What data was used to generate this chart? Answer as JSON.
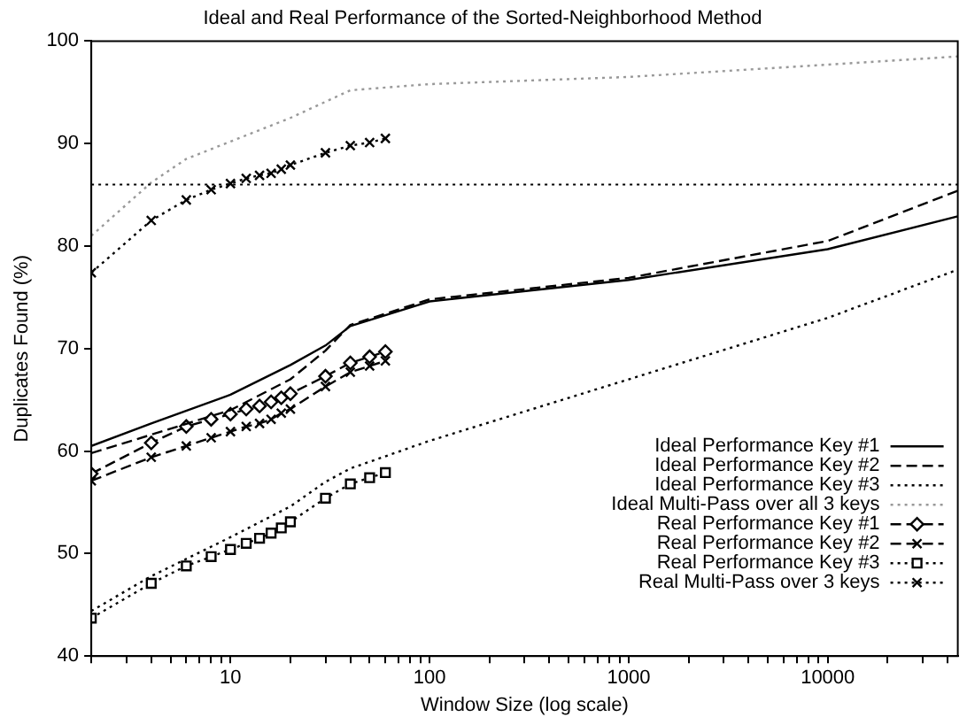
{
  "chart_data": {
    "type": "line",
    "title": "Ideal and Real Performance of the Sorted-Neighborhood Method",
    "xlabel": "Window Size (log scale)",
    "ylabel": "Duplicates Found (%)",
    "log": "x",
    "xlim": [
      2,
      45000
    ],
    "ylim": [
      40,
      100
    ],
    "xticks": [
      {
        "value": 2,
        "label": null
      },
      {
        "value": 3,
        "label": null
      },
      {
        "value": 4,
        "label": null
      },
      {
        "value": 5,
        "label": null
      },
      {
        "value": 6,
        "label": null
      },
      {
        "value": 7,
        "label": null
      },
      {
        "value": 8,
        "label": null
      },
      {
        "value": 9,
        "label": null
      },
      10,
      {
        "value": 20,
        "label": null
      },
      {
        "value": 30,
        "label": null
      },
      {
        "value": 40,
        "label": null
      },
      {
        "value": 50,
        "label": null
      },
      {
        "value": 60,
        "label": null
      },
      {
        "value": 70,
        "label": null
      },
      {
        "value": 80,
        "label": null
      },
      {
        "value": 90,
        "label": null
      },
      100,
      {
        "value": 200,
        "label": null
      },
      {
        "value": 300,
        "label": null
      },
      {
        "value": 400,
        "label": null
      },
      {
        "value": 500,
        "label": null
      },
      {
        "value": 600,
        "label": null
      },
      {
        "value": 700,
        "label": null
      },
      {
        "value": 800,
        "label": null
      },
      {
        "value": 900,
        "label": null
      },
      1000,
      {
        "value": 2000,
        "label": null
      },
      {
        "value": 3000,
        "label": null
      },
      {
        "value": 4000,
        "label": null
      },
      {
        "value": 5000,
        "label": null
      },
      {
        "value": 6000,
        "label": null
      },
      {
        "value": 7000,
        "label": null
      },
      {
        "value": 8000,
        "label": null
      },
      {
        "value": 9000,
        "label": null
      },
      10000,
      {
        "value": 20000,
        "label": null
      },
      {
        "value": 30000,
        "label": null
      },
      {
        "value": 40000,
        "label": null
      }
    ],
    "yticks": [
      40,
      50,
      60,
      70,
      80,
      90,
      100
    ],
    "grid": false,
    "legend": "bottom right",
    "ref_lines": [
      {
        "axis": "y",
        "value": 86,
        "line_style": "dotted"
      }
    ],
    "series": [
      {
        "name": "Ideal Performance Key #1",
        "color": "#000000",
        "marker": "none",
        "line_style": "solid",
        "x": [
          2,
          4,
          10,
          20,
          30,
          40,
          100,
          1000,
          10000,
          45000
        ],
        "values": [
          60.5,
          62.7,
          65.5,
          68.4,
          70.3,
          72.2,
          74.6,
          76.7,
          79.7,
          82.9
        ]
      },
      {
        "name": "Ideal Performance Key #2",
        "color": "#000000",
        "marker": "none",
        "line_style": "dashed",
        "x": [
          2,
          4,
          10,
          20,
          30,
          40,
          100,
          1000,
          10000,
          45000
        ],
        "values": [
          59.8,
          61.6,
          64,
          67,
          69.8,
          72.3,
          74.8,
          76.9,
          80.5,
          85.4
        ]
      },
      {
        "name": "Ideal Performance Key #3",
        "color": "#000000",
        "marker": "none",
        "line_style": "dotted",
        "x": [
          2,
          4,
          10,
          20,
          30,
          40,
          100,
          1000,
          10000,
          45000
        ],
        "values": [
          44.4,
          47.8,
          51.6,
          54.6,
          57,
          58.3,
          61,
          67,
          73,
          77.7
        ]
      },
      {
        "name": "Ideal Multi-Pass over all 3 keys",
        "color": "#999999",
        "marker": "none",
        "line_style": "dotted",
        "x": [
          2,
          4,
          6,
          10,
          20,
          40,
          100,
          1000,
          10000,
          45000
        ],
        "values": [
          81,
          86.2,
          88.5,
          90.2,
          92.5,
          95.2,
          95.8,
          96.5,
          97.7,
          98.5
        ]
      },
      {
        "name": "Real Performance Key #1",
        "color": "#000000",
        "marker": "diamond",
        "line_style": "dashed",
        "x": [
          2,
          4,
          6,
          8,
          10,
          12,
          14,
          16,
          18,
          20,
          30,
          40,
          50,
          60
        ],
        "values": [
          57.8,
          60.8,
          62.4,
          63.1,
          63.6,
          64.1,
          64.4,
          64.8,
          65.2,
          65.6,
          67.3,
          68.6,
          69.2,
          69.7
        ]
      },
      {
        "name": "Real Performance Key #2",
        "color": "#000000",
        "marker": "cross",
        "line_style": "dashed",
        "x": [
          2,
          4,
          6,
          8,
          10,
          12,
          14,
          16,
          18,
          20,
          30,
          40,
          50,
          60
        ],
        "values": [
          57.1,
          59.4,
          60.5,
          61.3,
          61.9,
          62.4,
          62.7,
          63.1,
          63.7,
          64.1,
          66.3,
          67.7,
          68.3,
          68.8
        ]
      },
      {
        "name": "Real Performance Key #3",
        "color": "#000000",
        "marker": "square",
        "line_style": "dotted",
        "x": [
          2,
          4,
          6,
          8,
          10,
          12,
          14,
          16,
          18,
          20,
          30,
          40,
          50,
          60
        ],
        "values": [
          43.7,
          47.1,
          48.8,
          49.7,
          50.4,
          51,
          51.5,
          52,
          52.5,
          53.1,
          55.4,
          56.8,
          57.4,
          57.9
        ]
      },
      {
        "name": "Real Multi-Pass over 3 keys",
        "color": "#000000",
        "marker": "cross",
        "line_style": "dotted",
        "x": [
          2,
          4,
          6,
          8,
          10,
          12,
          14,
          16,
          18,
          20,
          30,
          40,
          50,
          60
        ],
        "values": [
          77.4,
          82.5,
          84.5,
          85.5,
          86.1,
          86.6,
          86.9,
          87.1,
          87.5,
          87.9,
          89.1,
          89.8,
          90.1,
          90.5
        ]
      }
    ]
  }
}
